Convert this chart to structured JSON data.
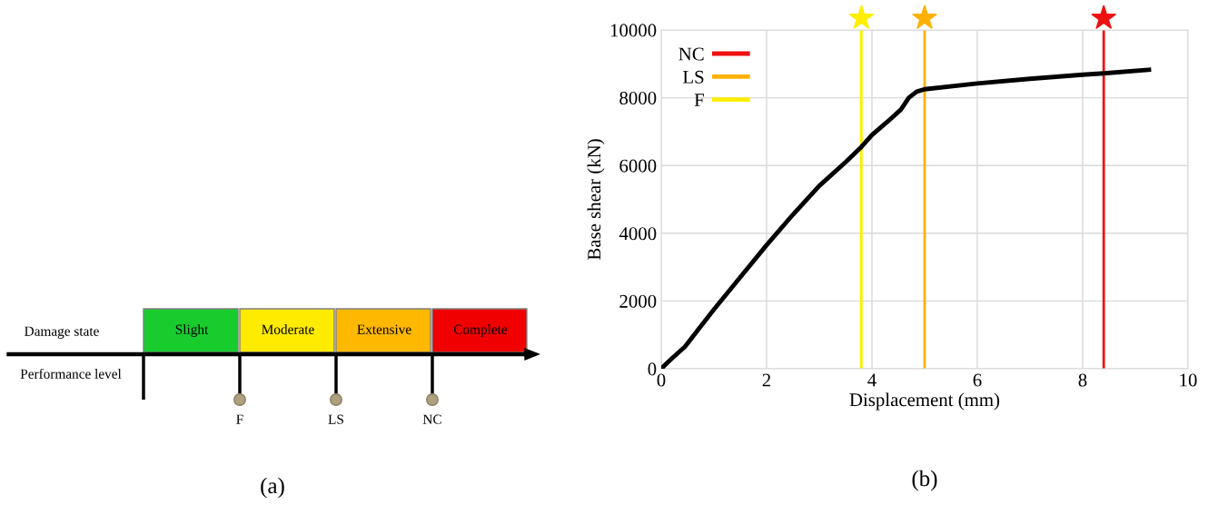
{
  "chart_data": [
    {
      "type": "other",
      "title": "(a)",
      "categories": [
        "Slight",
        "Moderate",
        "Extensive",
        "Complete"
      ],
      "colors": [
        "#18cc2e",
        "#ffeb00",
        "#ffb800",
        "#f00000"
      ],
      "annotations": [
        "Damage state",
        "Performance level",
        "F",
        "LS",
        "NC"
      ]
    },
    {
      "type": "line",
      "title": "(b)",
      "xlabel": "Displacement (mm)",
      "ylabel": "Base shear (kN)",
      "xlim": [
        0,
        10
      ],
      "xticks": [
        0,
        2,
        4,
        6,
        8,
        10
      ],
      "ylim": [
        0,
        10000
      ],
      "yticks": [
        0,
        2000,
        4000,
        6000,
        8000,
        10000
      ],
      "grid": true,
      "legend": "top left",
      "marker": "none",
      "line_style": "solid",
      "series": [
        {
          "name": "NC",
          "color": "#ee1111",
          "x": [
            8.4,
            8.4
          ],
          "values": [
            0,
            10000
          ]
        },
        {
          "name": "LS",
          "color": "#ffb000",
          "x": [
            5.0,
            5.0
          ],
          "values": [
            0,
            10000
          ]
        },
        {
          "name": "F",
          "color": "#ffee00",
          "x": [
            3.8,
            3.8
          ],
          "values": [
            0,
            10000
          ]
        },
        {
          "color": "#000000",
          "x": [
            0,
            0.2,
            0.45,
            0.7,
            1,
            1.5,
            2,
            2.5,
            3,
            3.5,
            3.8,
            4,
            4.3,
            4.55,
            4.7,
            4.85,
            5,
            6,
            7,
            8,
            8.4,
            9.3
          ],
          "values": [
            0,
            300,
            650,
            1150,
            1750,
            2700,
            3650,
            4550,
            5400,
            6100,
            6550,
            6900,
            7300,
            7650,
            8000,
            8180,
            8250,
            8420,
            8560,
            8680,
            8720,
            8830
          ]
        }
      ]
    }
  ]
}
